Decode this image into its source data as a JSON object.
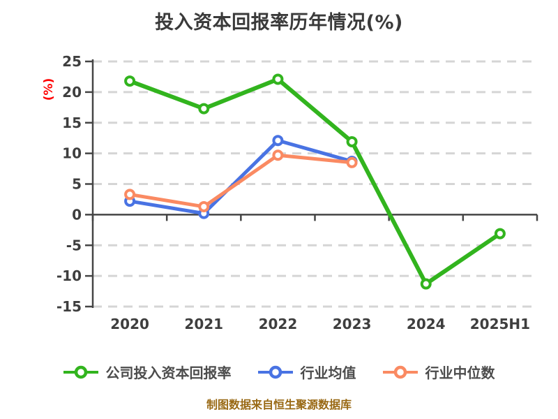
{
  "title": "投入资本回报率历年情况(%)",
  "footer": "制图数据来自恒生聚源数据库",
  "colors": {
    "title": "#3a3a3a",
    "axis": "#454545",
    "grid": "#d5d5d5",
    "tick": "#3e3e3e",
    "ylabel": "#ff0000",
    "legend": "#4c4c4c",
    "footer": "#996914",
    "marker_fill": "#ffffff"
  },
  "chart_data": {
    "type": "line",
    "title": "投入资本回报率历年情况(%)",
    "xlabel": "",
    "ylabel": "(%)",
    "categories": [
      "2020",
      "2021",
      "2022",
      "2023",
      "2024",
      "2025H1"
    ],
    "series": [
      {
        "name": "公司投入资本回报率",
        "color": "#32b41e",
        "values": [
          21.8,
          17.3,
          22.1,
          11.9,
          -11.3,
          -3.1
        ]
      },
      {
        "name": "行业均值",
        "color": "#4973e3",
        "values": [
          2.2,
          0.2,
          12.1,
          8.7,
          null,
          null
        ]
      },
      {
        "name": "行业中位数",
        "color": "#fa8a62",
        "values": [
          3.3,
          1.3,
          9.7,
          8.5,
          null,
          null
        ]
      }
    ],
    "ylim": [
      -15,
      25
    ],
    "y_ticks": [
      25,
      20,
      15,
      10,
      5,
      0,
      -5,
      -10,
      -15
    ],
    "grid": "dashed-horizontal",
    "zero_axis": true,
    "legend_position": "bottom"
  }
}
